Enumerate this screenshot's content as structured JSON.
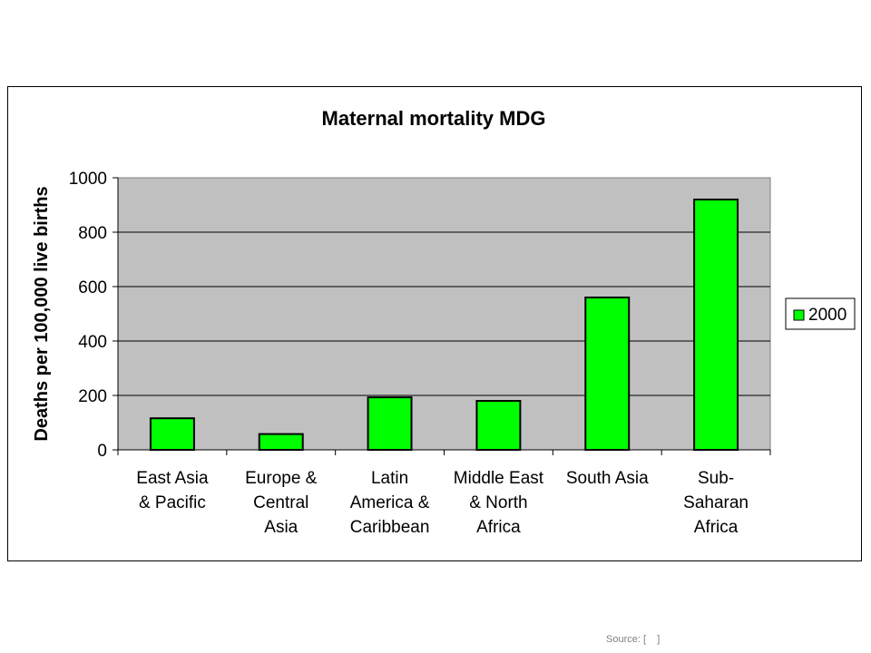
{
  "chart_data": {
    "type": "bar",
    "title": "Maternal mortality MDG",
    "ylabel": "Deaths per 100,000 live births",
    "xlabel": "",
    "categories": [
      [
        "East Asia",
        "& Pacific"
      ],
      [
        "Europe &",
        "Central",
        "Asia"
      ],
      [
        "Latin",
        "America &",
        "Caribbean"
      ],
      [
        "Middle East",
        "& North",
        "Africa"
      ],
      [
        "South Asia"
      ],
      [
        "Sub-",
        "Saharan",
        "Africa"
      ]
    ],
    "series": [
      {
        "name": "2000",
        "values": [
          116,
          58,
          193,
          180,
          560,
          920
        ],
        "color": "#00ff00"
      }
    ],
    "ylim": [
      0,
      1000
    ],
    "yticks": [
      0,
      200,
      400,
      600,
      800,
      1000
    ],
    "grid": true,
    "legend_position": "right",
    "plot_background": "#c0c0c0"
  },
  "source": {
    "text": "Source: [    ]"
  }
}
